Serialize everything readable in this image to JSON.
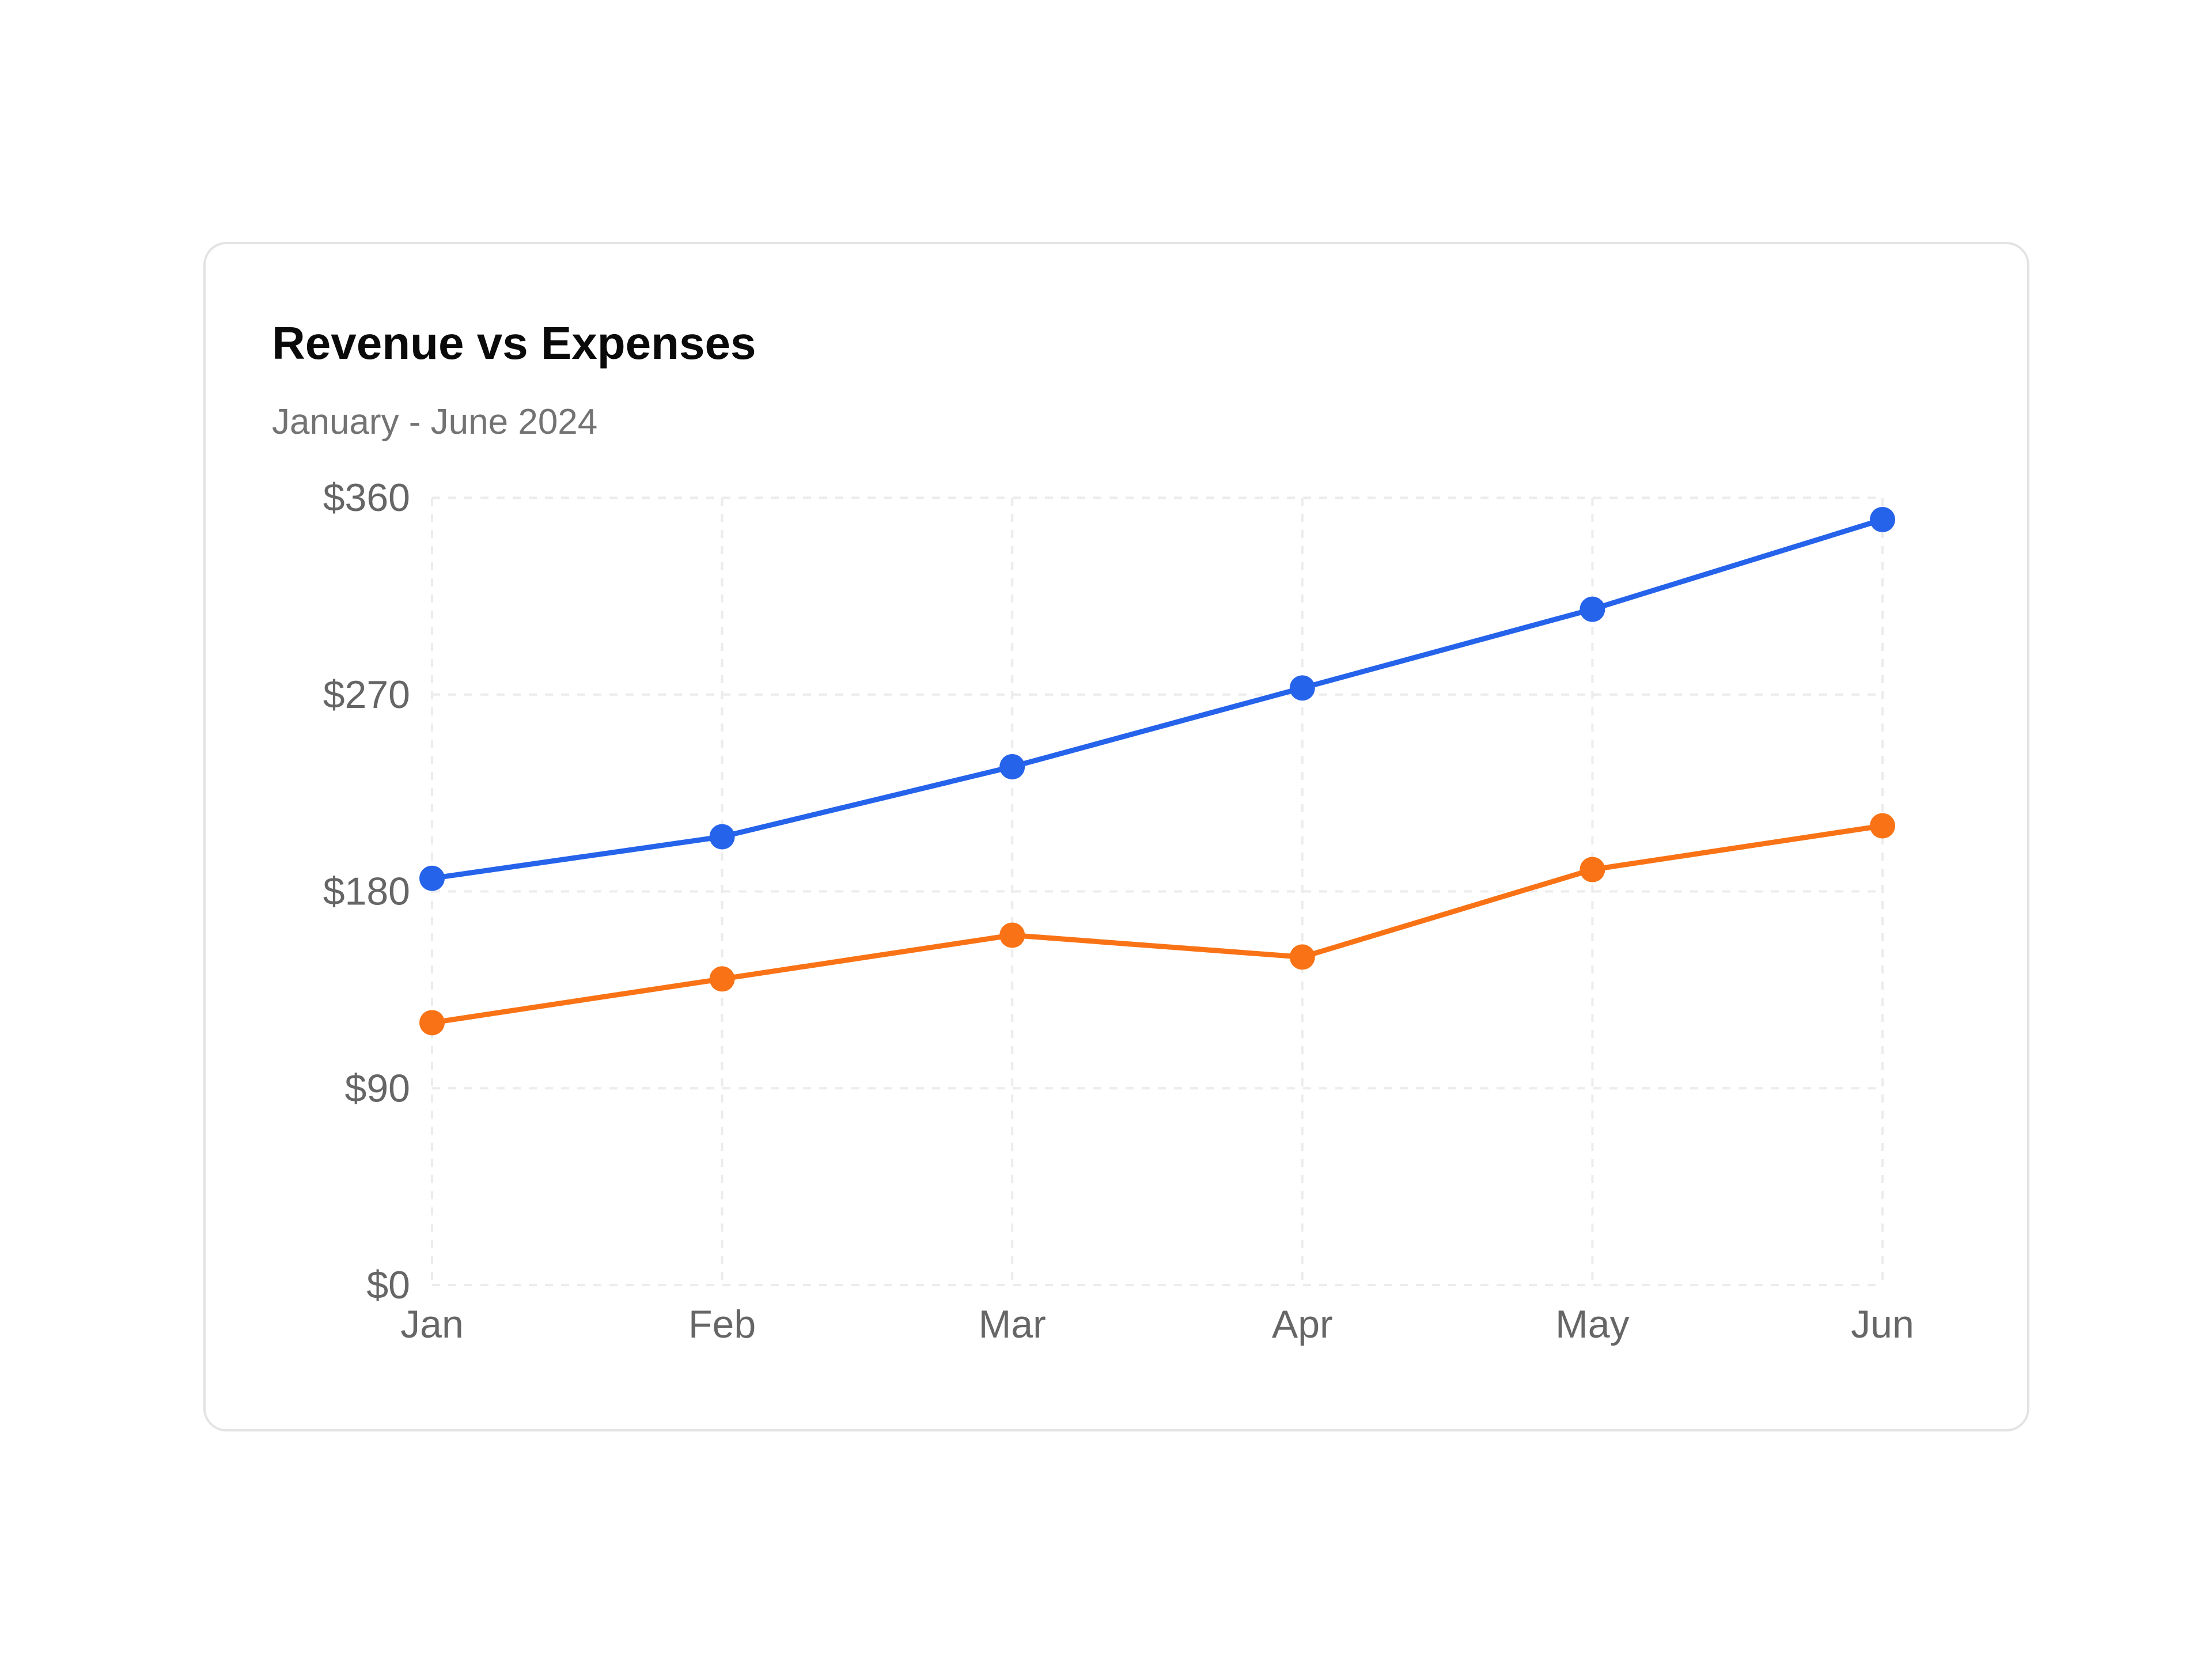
{
  "card": {
    "title": "Revenue vs Expenses",
    "subtitle": "January - June 2024"
  },
  "chart_data": {
    "type": "line",
    "title": "Revenue vs Expenses",
    "subtitle": "January - June 2024",
    "xlabel": "",
    "ylabel": "",
    "categories": [
      "Jan",
      "Feb",
      "Mar",
      "Apr",
      "May",
      "Jun"
    ],
    "y_ticks": [
      0,
      90,
      180,
      270,
      360
    ],
    "y_tick_labels": [
      "$0",
      "$90",
      "$180",
      "$270",
      "$360"
    ],
    "ylim": [
      0,
      360
    ],
    "grid": true,
    "legend": "none",
    "series": [
      {
        "values": [
          186,
          205,
          237,
          273,
          309,
          350
        ],
        "color": "#2563eb"
      },
      {
        "values": [
          120,
          140,
          160,
          150,
          190,
          210
        ],
        "color": "#f97316"
      }
    ]
  }
}
